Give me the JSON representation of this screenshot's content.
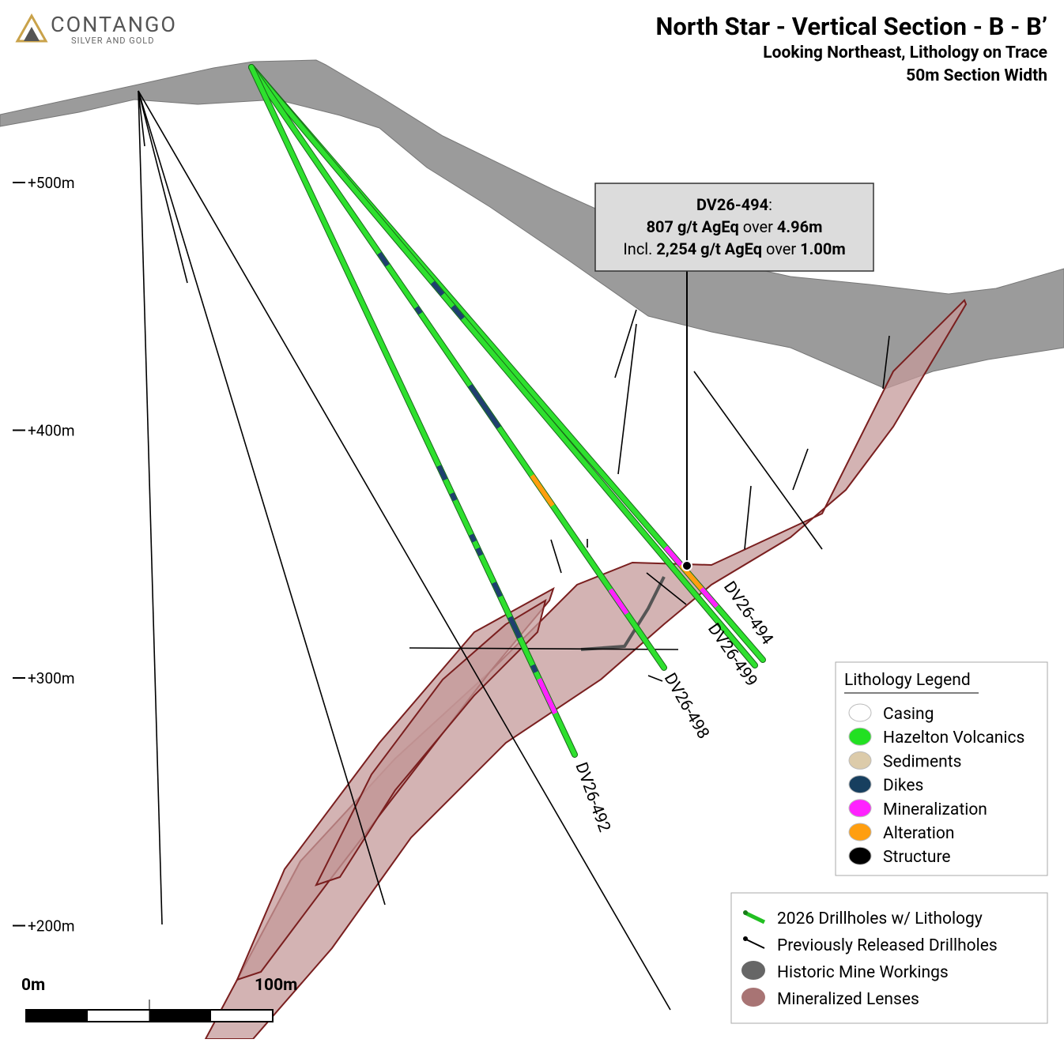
{
  "logo": {
    "name": "CONTANGO",
    "tagline": "SILVER AND GOLD"
  },
  "header": {
    "title": "North Star - Vertical Section - B - B’",
    "subtitle": [
      "Looking Northeast, Lithology on Trace",
      "50m Section Width"
    ]
  },
  "elevation_labels": [
    "+500m",
    "+400m",
    "+300m",
    "+200m"
  ],
  "callout": {
    "lines": [
      [
        {
          "text": "DV26-494",
          "bold": true
        },
        {
          "text": ":",
          "bold": false
        }
      ],
      [
        {
          "text": "807 g/t AgEq",
          "bold": true
        },
        {
          "text": " over ",
          "bold": false
        },
        {
          "text": "4.96m",
          "bold": true
        }
      ],
      [
        {
          "text": "Incl. ",
          "bold": false
        },
        {
          "text": "2,254 g/t AgEq",
          "bold": true
        },
        {
          "text": " over ",
          "bold": false
        },
        {
          "text": "1.00m",
          "bold": true
        }
      ]
    ]
  },
  "drillholes": [
    "DV26-494",
    "DV26-499",
    "DV26-498",
    "DV26-492"
  ],
  "lithology_legend": {
    "title": "Lithology Legend",
    "items": [
      {
        "label": "Casing",
        "color": "#ffffff"
      },
      {
        "label": "Hazelton Volcanics",
        "color": "#22e022"
      },
      {
        "label": "Sediments",
        "color": "#dccbaa"
      },
      {
        "label": "Dikes",
        "color": "#173f5f"
      },
      {
        "label": "Mineralization",
        "color": "#ff22ff"
      },
      {
        "label": "Alteration",
        "color": "#ff9e0f"
      },
      {
        "label": "Structure",
        "color": "#000000"
      }
    ]
  },
  "map_legend": {
    "items": [
      "2026 Drillholes w/ Lithology",
      "Previously Released Drillholes",
      "Historic Mine Workings",
      "Mineralized Lenses"
    ]
  },
  "scale_bar": {
    "labels": [
      "0m",
      "100m"
    ]
  }
}
